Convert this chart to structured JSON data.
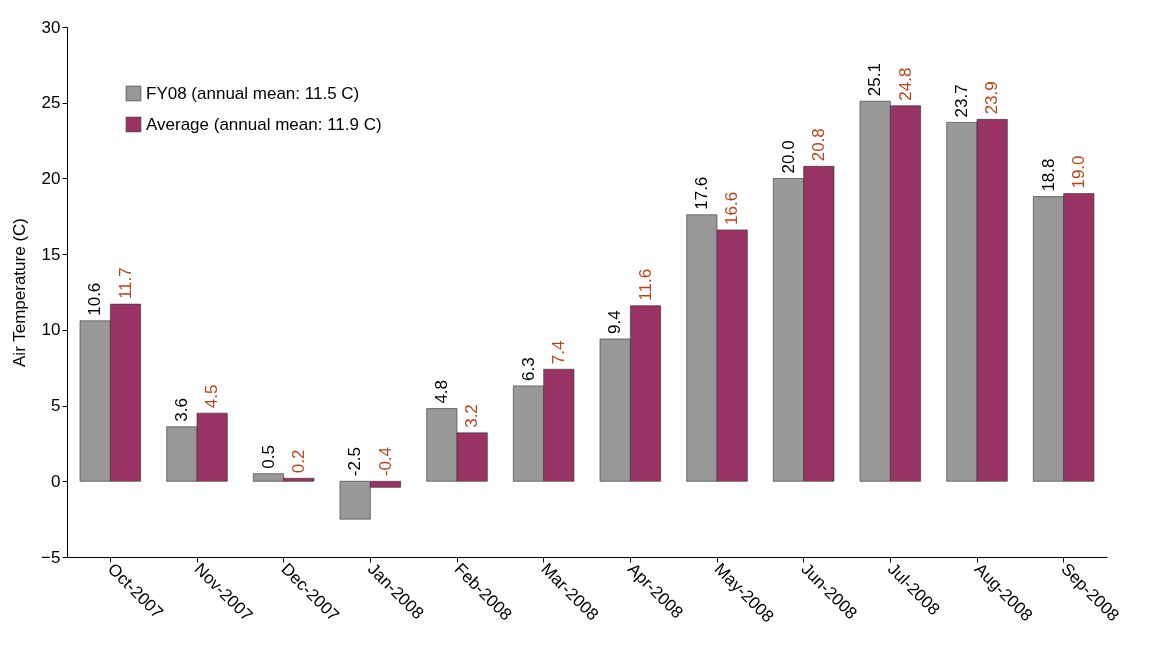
{
  "chart_data": {
    "type": "bar",
    "ylabel": "Air Temperature (C)",
    "categories": [
      "Oct-2007",
      "Nov-2007",
      "Dec-2007",
      "Jan-2008",
      "Feb-2008",
      "Mar-2008",
      "Apr-2008",
      "May-2008",
      "Jun-2008",
      "Jul-2008",
      "Aug-2008",
      "Sep-2008"
    ],
    "series": [
      {
        "name": "FY08 (annual mean: 11.5 C)",
        "color": "#999999",
        "values": [
          10.6,
          3.6,
          0.5,
          -2.5,
          4.8,
          6.3,
          9.4,
          17.6,
          20,
          25.1,
          23.7,
          18.8
        ],
        "value_labels": [
          "10.6",
          "3.6",
          "0.5",
          "-2.5",
          "4.8",
          "6.3",
          "9.4",
          "17.6",
          "20.0",
          "25.1",
          "23.7",
          "18.8"
        ]
      },
      {
        "name": "Average (annual mean: 11.9 C)",
        "color": "#993366",
        "values": [
          11.7,
          4.5,
          0.2,
          -0.4,
          3.2,
          7.4,
          11.6,
          16.6,
          20.8,
          24.8,
          23.9,
          19
        ],
        "value_labels": [
          "11.7",
          "4.5",
          "0.2",
          "-0.4",
          "3.2",
          "7.4",
          "11.6",
          "16.6",
          "20.8",
          "24.8",
          "23.9",
          "19.0"
        ]
      }
    ],
    "ylim": [
      -5,
      30
    ],
    "yticks": [
      -5,
      0,
      5,
      10,
      15,
      20,
      25,
      30
    ],
    "legend": "top left",
    "grid": false
  }
}
